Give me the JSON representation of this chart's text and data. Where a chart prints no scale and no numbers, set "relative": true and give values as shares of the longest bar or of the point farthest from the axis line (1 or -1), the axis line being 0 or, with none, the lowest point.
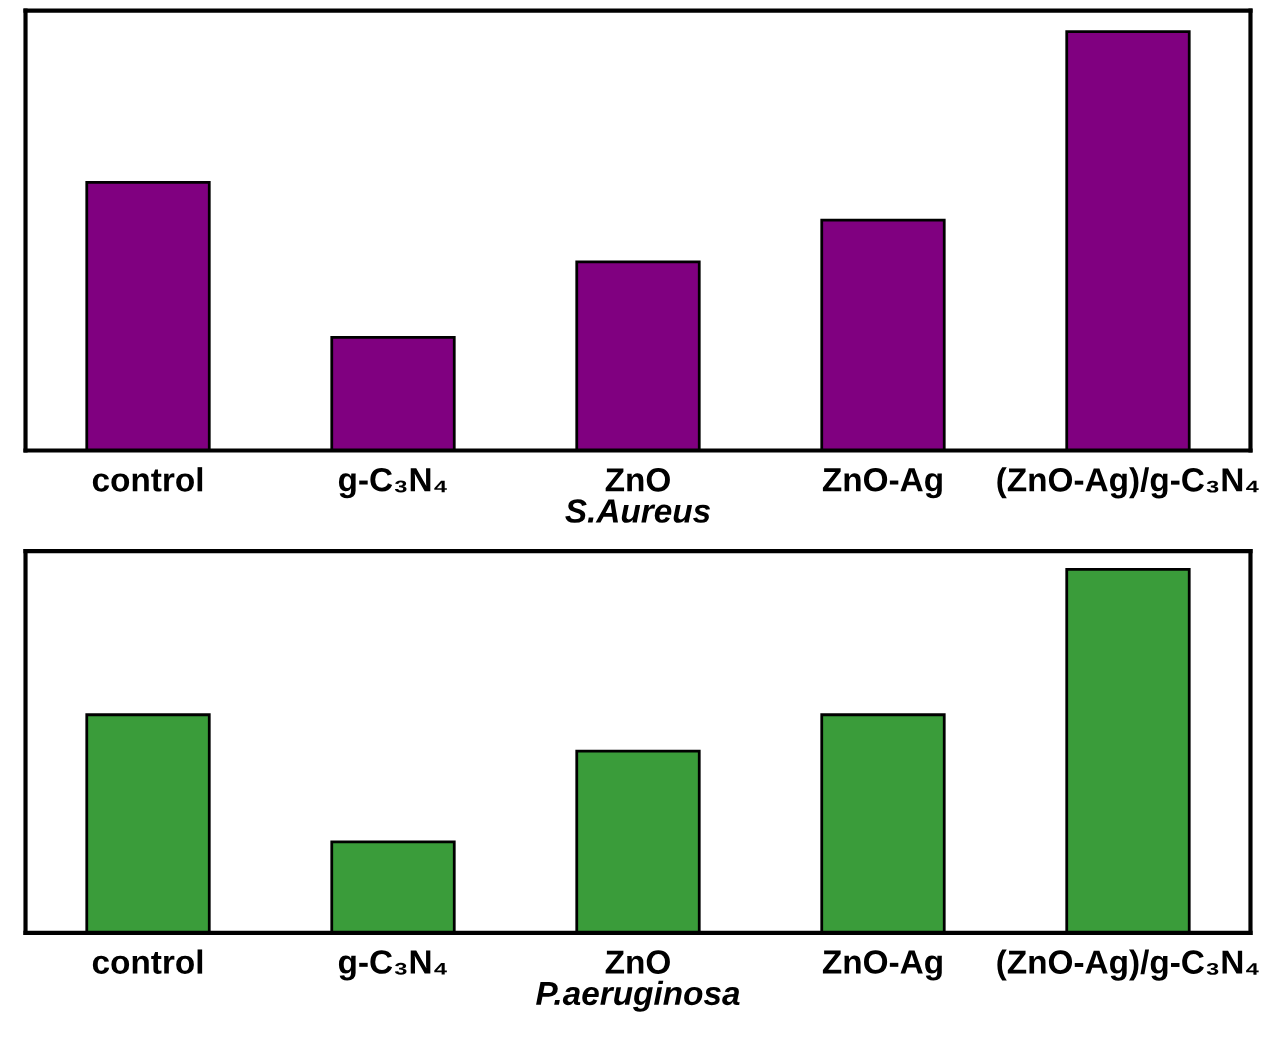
{
  "chart_data": [
    {
      "type": "bar",
      "relative": true,
      "xlabel": "S.Aureus",
      "categories": [
        "control",
        "g-C₃N₄",
        "ZnO",
        "ZnO-Ag",
        "(ZnO-Ag)/g-C₃N₄"
      ],
      "series": [
        {
          "color": "#800080",
          "values": [
            0.64,
            0.27,
            0.45,
            0.55,
            1
          ]
        }
      ]
    },
    {
      "type": "bar",
      "relative": true,
      "xlabel": "P.aeruginosa",
      "categories": [
        "control",
        "g-C₃N₄",
        "ZnO",
        "ZnO-Ag",
        "(ZnO-Ag)/g-C₃N₄"
      ],
      "series": [
        {
          "color": "#3a9c3a",
          "values": [
            0.6,
            0.25,
            0.5,
            0.6,
            1
          ]
        }
      ]
    }
  ]
}
